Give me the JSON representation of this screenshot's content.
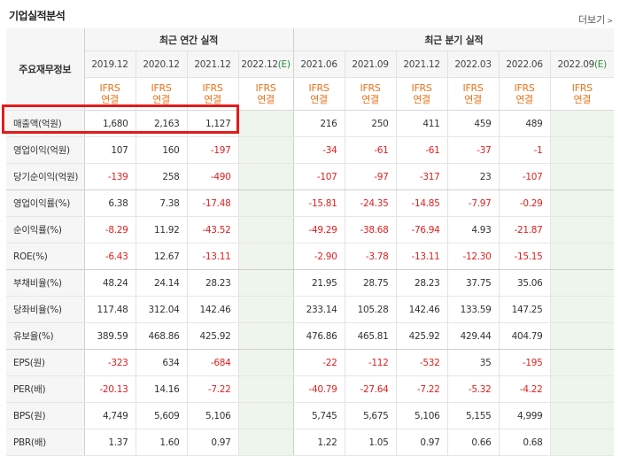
{
  "title": "기업실적분석",
  "more_label": "더보기",
  "header": {
    "row_label": "주요재무정보",
    "annual_label": "최근 연간 실적",
    "quarter_label": "최근 분기 실적",
    "standard_top": "IFRS",
    "standard_bottom": "연결",
    "annual_periods": [
      "2019.12",
      "2020.12",
      "2021.12",
      "2022.12"
    ],
    "quarter_periods": [
      "2021.06",
      "2021.09",
      "2021.12",
      "2022.03",
      "2022.06",
      "2022.09"
    ],
    "estimate_mark": "(E)"
  },
  "rows": [
    {
      "label": "매출액(억원)",
      "values": [
        "1,680",
        "2,163",
        "1,127",
        "",
        "216",
        "250",
        "411",
        "459",
        "489",
        ""
      ]
    },
    {
      "label": "영업이익(억원)",
      "values": [
        "107",
        "160",
        "-197",
        "",
        "-34",
        "-61",
        "-61",
        "-37",
        "-1",
        ""
      ]
    },
    {
      "label": "당기순이익(억원)",
      "values": [
        "-139",
        "258",
        "-490",
        "",
        "-107",
        "-97",
        "-317",
        "23",
        "-107",
        ""
      ]
    },
    {
      "label": "영업이익률(%)",
      "values": [
        "6.38",
        "7.38",
        "-17.48",
        "",
        "-15.81",
        "-24.35",
        "-14.85",
        "-7.97",
        "-0.29",
        ""
      ]
    },
    {
      "label": "순이익률(%)",
      "values": [
        "-8.29",
        "11.92",
        "-43.52",
        "",
        "-49.29",
        "-38.68",
        "-76.94",
        "4.93",
        "-21.87",
        ""
      ]
    },
    {
      "label": "ROE(%)",
      "values": [
        "-6.43",
        "12.67",
        "-13.11",
        "",
        "-2.90",
        "-3.78",
        "-13.11",
        "-12.30",
        "-15.15",
        ""
      ]
    },
    {
      "label": "부채비율(%)",
      "values": [
        "48.24",
        "24.14",
        "28.23",
        "",
        "21.95",
        "28.75",
        "28.23",
        "37.75",
        "35.06",
        ""
      ]
    },
    {
      "label": "당좌비율(%)",
      "values": [
        "117.48",
        "312.04",
        "142.46",
        "",
        "233.14",
        "105.28",
        "142.46",
        "133.59",
        "147.25",
        ""
      ]
    },
    {
      "label": "유보율(%)",
      "values": [
        "389.59",
        "468.86",
        "425.92",
        "",
        "476.86",
        "465.81",
        "425.92",
        "429.44",
        "404.79",
        ""
      ]
    },
    {
      "label": "EPS(원)",
      "values": [
        "-323",
        "634",
        "-684",
        "",
        "-22",
        "-112",
        "-532",
        "35",
        "-195",
        ""
      ]
    },
    {
      "label": "PER(배)",
      "values": [
        "-20.13",
        "14.16",
        "-7.22",
        "",
        "-40.79",
        "-27.64",
        "-7.22",
        "-5.32",
        "-4.22",
        ""
      ]
    },
    {
      "label": "BPS(원)",
      "values": [
        "4,749",
        "5,609",
        "5,106",
        "",
        "5,745",
        "5,675",
        "5,106",
        "5,155",
        "4,999",
        ""
      ]
    },
    {
      "label": "PBR(배)",
      "values": [
        "1.37",
        "1.60",
        "0.97",
        "",
        "1.22",
        "1.05",
        "0.97",
        "0.66",
        "0.68",
        ""
      ]
    }
  ],
  "colors": {
    "accent": "#e8731a",
    "negative": "#e02020",
    "estimate_bg": "#eef5ec",
    "highlight": "#e21b1b"
  }
}
